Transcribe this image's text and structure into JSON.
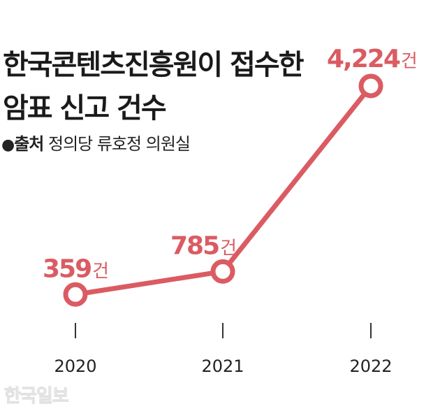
{
  "title_line1": "한국콘텐츠진흥원이 접수한",
  "title_line2": "암표 신고 건수",
  "source": {
    "bullet": "●",
    "label": "출처",
    "text": "정의당 류호정 의원실"
  },
  "watermark": "한국일보",
  "chart_data": {
    "type": "line",
    "categories": [
      "2020",
      "2021",
      "2022"
    ],
    "series": [
      {
        "values": [
          359,
          785,
          4224
        ]
      }
    ],
    "data_labels": [
      "359",
      "785",
      "4,224"
    ],
    "unit": "건",
    "ylim": [
      0,
      4224
    ],
    "grid": false,
    "colors": {
      "line": "#db5b63",
      "marker_fill": "#ffffff",
      "label": "#db5b63",
      "axis_text": "#222222"
    }
  }
}
